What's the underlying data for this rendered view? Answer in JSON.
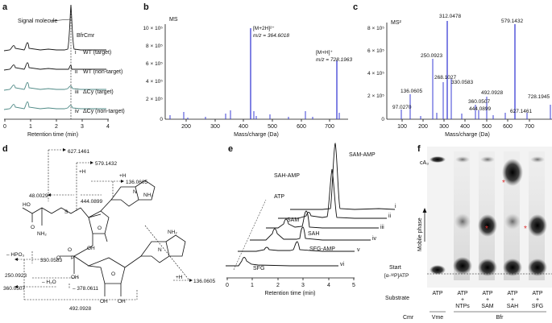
{
  "panels": {
    "a": {
      "label": "a",
      "annotation": "Signal molecule",
      "legend_title": "BfrCmr",
      "traces": [
        {
          "roman": "i",
          "name": "WT (target)",
          "color": "#1a1a1a"
        },
        {
          "roman": "ii",
          "name": "WT (non-target)",
          "color": "#1a1a1a"
        },
        {
          "roman": "iii",
          "name": "ΔCy (target)",
          "color": "#4f8a86"
        },
        {
          "roman": "iv",
          "name": "ΔCy (non-target)",
          "color": "#4f8a86"
        }
      ],
      "xlabel": "Retention time (min)",
      "xticks": [
        "0",
        "1",
        "2",
        "3",
        "4"
      ]
    },
    "b": {
      "label": "b",
      "title": "MS",
      "peak1": "[M+2H]²⁺",
      "peak1_mz": "m/z = 364.6018",
      "peak2": "[M+H]⁺",
      "peak2_mz": "m/z = 728.1963",
      "yticks": [
        "10 × 10⁵",
        "8 × 10⁵",
        "6 × 10⁵",
        "4 × 10⁵",
        "2 × 10⁵",
        "0"
      ],
      "xticks": [
        "200",
        "300",
        "400",
        "500",
        "600",
        "700"
      ],
      "xlabel": "Mass/charge (Da)",
      "color": "#3b3fd6"
    },
    "c": {
      "label": "c",
      "title": "MS²",
      "yticks": [
        "8 × 10⁵",
        "6 × 10⁵",
        "4 × 10⁵",
        "2 × 10⁵",
        "0"
      ],
      "xticks": [
        "100",
        "200",
        "300",
        "400",
        "500",
        "600",
        "700"
      ],
      "xlabel": "Mass/charge (Da)",
      "color": "#3b3fd6",
      "peak_labels": [
        "97.0270",
        "136.0605",
        "250.0923",
        "268.1027",
        "312.0478",
        "330.0583",
        "360.0507",
        "444.0899",
        "492.0928",
        "579.1432",
        "627.1461",
        "728.1945"
      ]
    },
    "d": {
      "label": "d",
      "masses": [
        "627.1461",
        "579.1432",
        "+H",
        "+H",
        "136.0605",
        "48.0029",
        "444.0899",
        "NH₂",
        "HO",
        "O",
        "NH₂",
        "S",
        "NH₂",
        "– HPO₃",
        "330.0583",
        "250.0923",
        "O",
        "P",
        "O",
        "OH",
        "OH",
        "– H₂O",
        "– 378.0611",
        "360.0507",
        "OH",
        "OH",
        "492.0928",
        "+H",
        "136.0605",
        "O",
        "O",
        "N",
        "N"
      ]
    },
    "e": {
      "label": "e",
      "labels": [
        "SAM-AMP",
        "SAH-AMP",
        "ATP",
        "SAM",
        "SAH",
        "SFG-AMP",
        "SFG"
      ],
      "romans": [
        "i",
        "ii",
        "iii",
        "iv",
        "v",
        "vi"
      ],
      "xticks": [
        "0",
        "1",
        "2",
        "3",
        "4",
        "5"
      ],
      "xlabel": "Retention time (min)"
    },
    "f": {
      "label": "f",
      "top_label": "cA₃",
      "axis_label": "Mobile phase",
      "start_label": "Start",
      "origin_label": "[α-³²P]ATP",
      "row_substrate": "Substrate",
      "row_cmr": "Cmr",
      "lanes": [
        "ATP",
        "ATP",
        "ATP",
        "ATP",
        "ATP"
      ],
      "lane_sub": [
        "",
        "+",
        "+",
        "+",
        "+"
      ],
      "lane_sub2": [
        "",
        "NTPs",
        "SAM",
        "SAH",
        "SFG"
      ],
      "cmr_vme": "Vme",
      "cmr_bfr": "Bfr",
      "star": "*"
    }
  }
}
